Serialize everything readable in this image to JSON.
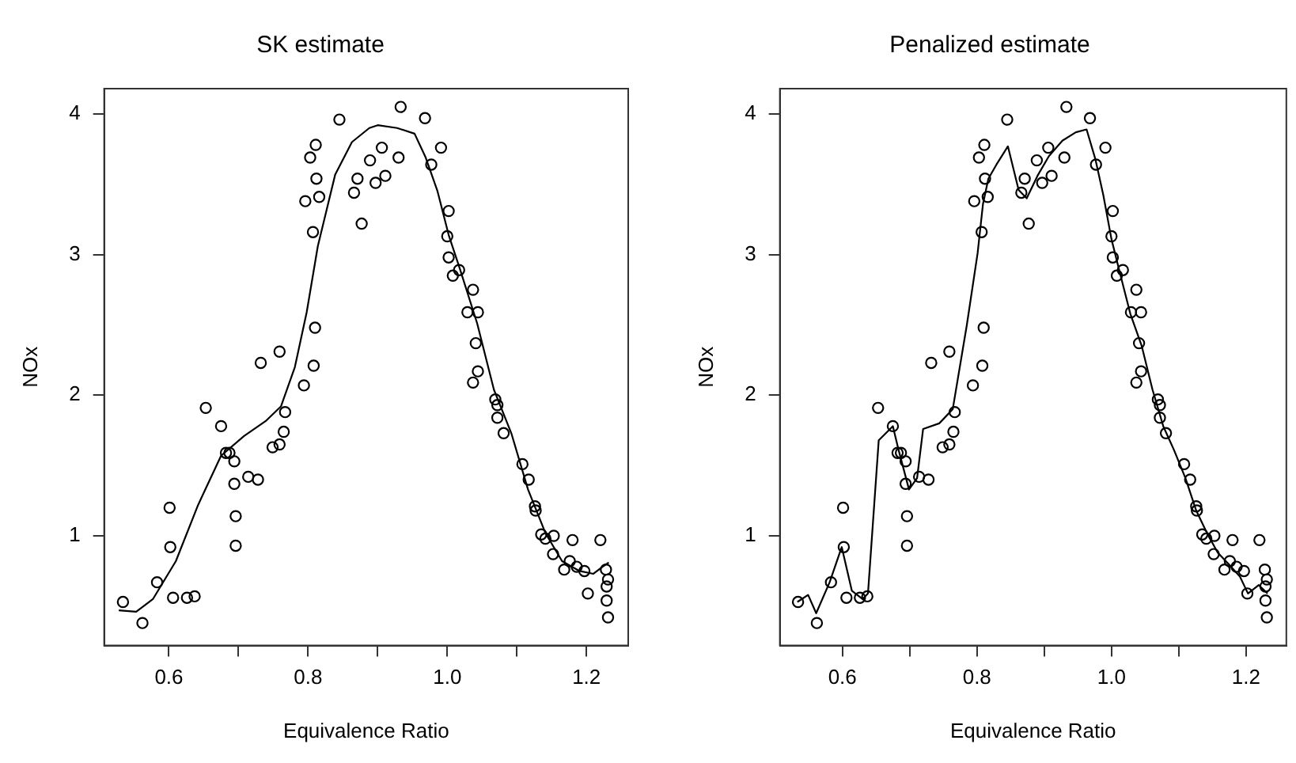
{
  "chart_data": [
    {
      "type": "scatter",
      "title": "SK estimate",
      "xlabel": "Equivalence Ratio",
      "ylabel": "NOx",
      "xlim": [
        0.507,
        1.26
      ],
      "ylim": [
        0.22,
        4.18
      ],
      "xticks": [
        0.6,
        {
          "value": 0.7,
          "label": null
        },
        0.8,
        {
          "value": 0.9,
          "label": null
        },
        {
          "value": 1,
          "label": "1.0"
        },
        {
          "value": 1.1,
          "label": null
        },
        1.2
      ],
      "yticks": [
        1,
        2,
        3,
        4
      ],
      "series": [
        {
          "type": "scatter",
          "marker": "circle",
          "color": "#000000",
          "x": [
            0.534,
            0.562,
            0.583,
            0.601,
            0.602,
            0.606,
            0.626,
            0.637,
            0.653,
            0.675,
            0.682,
            0.687,
            0.694,
            0.694,
            0.696,
            0.696,
            0.714,
            0.728,
            0.732,
            0.759,
            0.749,
            0.759,
            0.765,
            0.767,
            0.794,
            0.808,
            0.81,
            0.807,
            0.796,
            0.816,
            0.812,
            0.803,
            0.811,
            0.845,
            0.866,
            0.871,
            0.877,
            0.889,
            0.897,
            0.906,
            0.911,
            0.93,
            0.933,
            0.968,
            0.977,
            0.991,
            1.002,
            1.0,
            1.002,
            1.008,
            1.017,
            1.037,
            1.029,
            1.044,
            1.041,
            1.044,
            1.037,
            1.069,
            1.072,
            1.072,
            1.081,
            1.108,
            1.117,
            1.126,
            1.127,
            1.135,
            1.141,
            1.153,
            1.152,
            1.168,
            1.176,
            1.186,
            1.197,
            1.18,
            1.22,
            1.202,
            1.228,
            1.231,
            1.229,
            1.229,
            1.231
          ],
          "values": [
            0.53,
            0.38,
            0.67,
            1.2,
            0.92,
            0.56,
            0.56,
            0.57,
            1.91,
            1.78,
            1.59,
            1.59,
            1.53,
            1.37,
            1.14,
            0.93,
            1.42,
            1.4,
            2.23,
            2.31,
            1.63,
            1.65,
            1.74,
            1.88,
            2.07,
            2.21,
            2.48,
            3.16,
            3.38,
            3.41,
            3.54,
            3.69,
            3.78,
            3.96,
            3.44,
            3.54,
            3.22,
            3.67,
            3.51,
            3.76,
            3.56,
            3.69,
            4.05,
            3.97,
            3.64,
            3.76,
            3.31,
            3.13,
            2.98,
            2.85,
            2.89,
            2.75,
            2.59,
            2.59,
            2.37,
            2.17,
            2.09,
            1.97,
            1.93,
            1.84,
            1.73,
            1.51,
            1.4,
            1.21,
            1.18,
            1.01,
            0.98,
            1.0,
            0.87,
            0.76,
            0.82,
            0.78,
            0.75,
            0.97,
            0.97,
            0.59,
            0.76,
            0.69,
            0.64,
            0.54,
            0.42
          ]
        },
        {
          "type": "line",
          "marker": "none",
          "line_style": "solid",
          "color": "#000000",
          "x": [
            0.528,
            0.553,
            0.577,
            0.61,
            0.642,
            0.675,
            0.708,
            0.74,
            0.761,
            0.781,
            0.798,
            0.814,
            0.839,
            0.863,
            0.888,
            0.9,
            0.928,
            0.953,
            0.969,
            0.986,
            1.002,
            1.018,
            1.043,
            1.067,
            1.092,
            1.116,
            1.141,
            1.165,
            1.19,
            1.21,
            1.223,
            1.232
          ],
          "values": [
            0.47,
            0.46,
            0.55,
            0.82,
            1.22,
            1.57,
            1.71,
            1.82,
            1.92,
            2.2,
            2.59,
            3.06,
            3.57,
            3.8,
            3.9,
            3.92,
            3.9,
            3.86,
            3.69,
            3.45,
            3.14,
            2.9,
            2.51,
            2.04,
            1.73,
            1.33,
            1.02,
            0.82,
            0.75,
            0.73,
            0.78,
            0.81
          ]
        }
      ]
    },
    {
      "type": "scatter",
      "title": "Penalized estimate",
      "xlabel": "Equivalence Ratio",
      "ylabel": "NOx",
      "xlim": [
        0.507,
        1.26
      ],
      "ylim": [
        0.22,
        4.18
      ],
      "xticks": [
        0.6,
        {
          "value": 0.7,
          "label": null
        },
        0.8,
        {
          "value": 0.9,
          "label": null
        },
        {
          "value": 1,
          "label": "1.0"
        },
        {
          "value": 1.1,
          "label": null
        },
        1.2
      ],
      "yticks": [
        1,
        2,
        3,
        4
      ],
      "series": [
        {
          "type": "scatter",
          "marker": "circle",
          "color": "#000000",
          "x": [
            0.534,
            0.562,
            0.583,
            0.601,
            0.602,
            0.606,
            0.626,
            0.637,
            0.653,
            0.675,
            0.682,
            0.687,
            0.694,
            0.694,
            0.696,
            0.696,
            0.714,
            0.728,
            0.732,
            0.759,
            0.749,
            0.759,
            0.765,
            0.767,
            0.794,
            0.808,
            0.81,
            0.807,
            0.796,
            0.816,
            0.812,
            0.803,
            0.811,
            0.845,
            0.866,
            0.871,
            0.877,
            0.889,
            0.897,
            0.906,
            0.911,
            0.93,
            0.933,
            0.968,
            0.977,
            0.991,
            1.002,
            1.0,
            1.002,
            1.008,
            1.017,
            1.037,
            1.029,
            1.044,
            1.041,
            1.044,
            1.037,
            1.069,
            1.072,
            1.072,
            1.081,
            1.108,
            1.117,
            1.126,
            1.127,
            1.135,
            1.141,
            1.153,
            1.152,
            1.168,
            1.176,
            1.186,
            1.197,
            1.18,
            1.22,
            1.202,
            1.228,
            1.231,
            1.229,
            1.229,
            1.231
          ],
          "values": [
            0.53,
            0.38,
            0.67,
            1.2,
            0.92,
            0.56,
            0.56,
            0.57,
            1.91,
            1.78,
            1.59,
            1.59,
            1.53,
            1.37,
            1.14,
            0.93,
            1.42,
            1.4,
            2.23,
            2.31,
            1.63,
            1.65,
            1.74,
            1.88,
            2.07,
            2.21,
            2.48,
            3.16,
            3.38,
            3.41,
            3.54,
            3.69,
            3.78,
            3.96,
            3.44,
            3.54,
            3.22,
            3.67,
            3.51,
            3.76,
            3.56,
            3.69,
            4.05,
            3.97,
            3.64,
            3.76,
            3.31,
            3.13,
            2.98,
            2.85,
            2.89,
            2.75,
            2.59,
            2.59,
            2.37,
            2.17,
            2.09,
            1.97,
            1.93,
            1.84,
            1.73,
            1.51,
            1.4,
            1.21,
            1.18,
            1.01,
            0.98,
            1.0,
            0.87,
            0.76,
            0.82,
            0.78,
            0.75,
            0.97,
            0.97,
            0.59,
            0.76,
            0.69,
            0.64,
            0.54,
            0.42
          ]
        },
        {
          "type": "line",
          "marker": "none",
          "line_style": "solid",
          "color": "#000000",
          "x": [
            0.533,
            0.549,
            0.561,
            0.581,
            0.599,
            0.614,
            0.63,
            0.638,
            0.654,
            0.675,
            0.683,
            0.699,
            0.711,
            0.72,
            0.744,
            0.764,
            0.785,
            0.801,
            0.809,
            0.817,
            0.829,
            0.846,
            0.862,
            0.874,
            0.89,
            0.907,
            0.927,
            0.947,
            0.963,
            0.976,
            0.988,
            1.0,
            1.012,
            1.028,
            1.045,
            1.061,
            1.077,
            1.093,
            1.11,
            1.126,
            1.142,
            1.158,
            1.174,
            1.191,
            1.203,
            1.219,
            1.232
          ],
          "values": [
            0.53,
            0.58,
            0.45,
            0.67,
            0.92,
            0.61,
            0.55,
            0.59,
            1.68,
            1.78,
            1.62,
            1.33,
            1.41,
            1.76,
            1.8,
            1.9,
            2.5,
            3.01,
            3.36,
            3.54,
            3.64,
            3.77,
            3.46,
            3.4,
            3.56,
            3.7,
            3.81,
            3.87,
            3.89,
            3.68,
            3.42,
            3.11,
            2.88,
            2.58,
            2.35,
            2.04,
            1.78,
            1.61,
            1.41,
            1.18,
            1.02,
            0.88,
            0.8,
            0.71,
            0.59,
            0.65,
            0.59
          ]
        }
      ]
    }
  ]
}
